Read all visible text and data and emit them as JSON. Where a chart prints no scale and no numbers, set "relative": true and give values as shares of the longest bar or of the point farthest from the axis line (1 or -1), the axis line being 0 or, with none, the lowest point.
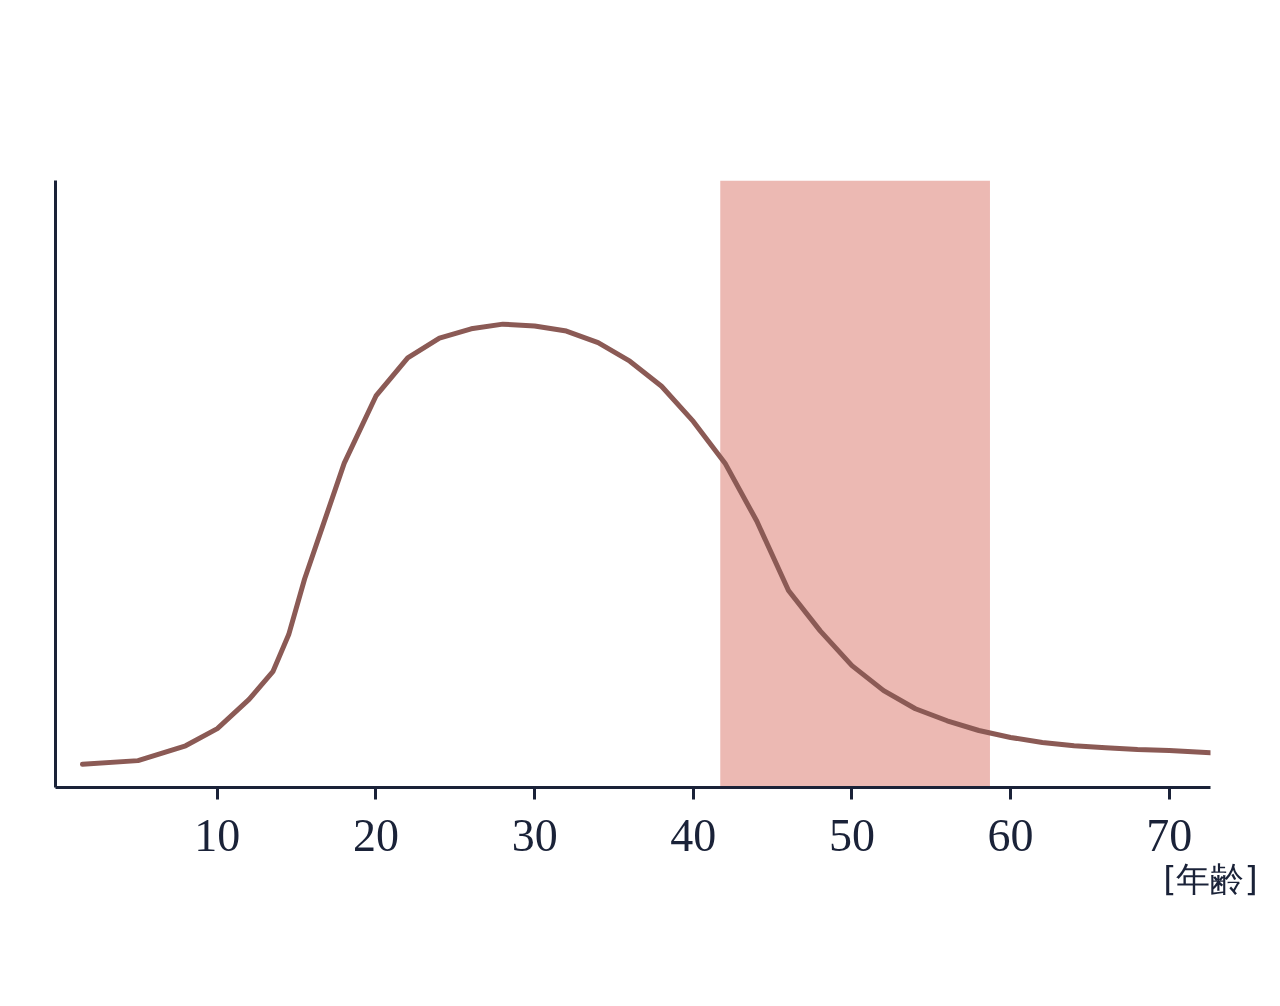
{
  "chart_data": {
    "type": "line",
    "relative": true,
    "xlabel": "[年齢]",
    "x": [
      1.5,
      5,
      8,
      10,
      12,
      13.5,
      14.5,
      15.5,
      16.5,
      18,
      20,
      22,
      24,
      26,
      28,
      30,
      32,
      34,
      36,
      38,
      40,
      42,
      44,
      46,
      48,
      50,
      52,
      54,
      56,
      58,
      60,
      62,
      64,
      66,
      68,
      70,
      72.6
    ],
    "series": [
      {
        "color": "#8b5a55",
        "values": [
          0.05,
          0.058,
          0.09,
          0.127,
          0.19,
          0.25,
          0.33,
          0.45,
          0.55,
          0.7,
          0.845,
          0.927,
          0.97,
          0.99,
          1.0,
          0.996,
          0.985,
          0.96,
          0.92,
          0.866,
          0.79,
          0.7,
          0.575,
          0.425,
          0.338,
          0.263,
          0.209,
          0.17,
          0.144,
          0.123,
          0.108,
          0.097,
          0.09,
          0.086,
          0.082,
          0.08,
          0.075
        ]
      }
    ],
    "xlim": [
      -0.2,
      72.6
    ],
    "xticks": [
      10,
      20,
      30,
      40,
      50,
      60,
      70
    ],
    "bands": [
      {
        "axis": "x",
        "from": 41.7,
        "to": 58.7,
        "color": "#dc8075"
      }
    ],
    "grid": false,
    "marker": "none",
    "line_style": "solid"
  }
}
